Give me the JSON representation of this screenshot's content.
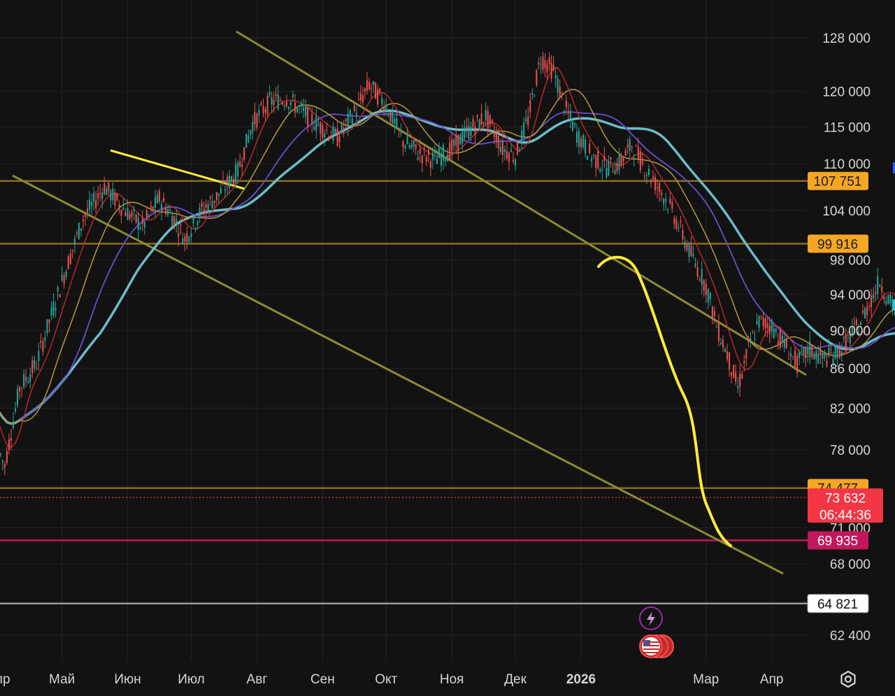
{
  "chart_data": {
    "type": "candlestick",
    "y_ticks": [
      {
        "value": 128000,
        "label": "128 000"
      },
      {
        "value": 120000,
        "label": "120 000"
      },
      {
        "value": 115000,
        "label": "115 000"
      },
      {
        "value": 110000,
        "label": "110 000"
      },
      {
        "value": 104000,
        "label": "104 000"
      },
      {
        "value": 98000,
        "label": "98 000"
      },
      {
        "value": 94000,
        "label": "94 000"
      },
      {
        "value": 90000,
        "label": "90 000"
      },
      {
        "value": 86000,
        "label": "86 000"
      },
      {
        "value": 82000,
        "label": "82 000"
      },
      {
        "value": 78000,
        "label": "78 000"
      },
      {
        "value": 71000,
        "label": "71 000"
      },
      {
        "value": 68000,
        "label": "68 000"
      },
      {
        "value": 62400,
        "label": "62 400"
      }
    ],
    "x_ticks": [
      {
        "date": "2025-04-01",
        "label": "Апр",
        "bold": false
      },
      {
        "date": "2025-05-01",
        "label": "Май",
        "bold": false
      },
      {
        "date": "2025-06-01",
        "label": "Июн",
        "bold": false
      },
      {
        "date": "2025-07-01",
        "label": "Июл",
        "bold": false
      },
      {
        "date": "2025-08-01",
        "label": "Авг",
        "bold": false
      },
      {
        "date": "2025-09-01",
        "label": "Сен",
        "bold": false
      },
      {
        "date": "2025-10-01",
        "label": "Окт",
        "bold": false
      },
      {
        "date": "2025-11-01",
        "label": "Ноя",
        "bold": false
      },
      {
        "date": "2025-12-01",
        "label": "Дек",
        "bold": false
      },
      {
        "date": "2026-01-01",
        "label": "2026",
        "bold": true
      },
      {
        "date": "2026-03-01",
        "label": "Мар",
        "bold": false
      },
      {
        "date": "2026-04-01",
        "label": "Апр",
        "bold": false
      }
    ],
    "price_levels": [
      {
        "value": 107751,
        "label": "107 751",
        "color": "#8a6d1e",
        "badge_bg": "#f5a623",
        "badge_fg": "#1a1a1a"
      },
      {
        "value": 99916,
        "label": "99 916",
        "color": "#8a6d1e",
        "badge_bg": "#f5a623",
        "badge_fg": "#1a1a1a"
      },
      {
        "value": 74477,
        "label": "74 477",
        "color": "#8a6d1e",
        "badge_bg": "#f5a623",
        "badge_fg": "#1a1a1a"
      },
      {
        "value": 69935,
        "label": "69 935",
        "color": "#c2185b",
        "badge_bg": "#c2185b",
        "badge_fg": "#ffffff"
      },
      {
        "value": 64821,
        "label": "64 821",
        "color": "#9a9a9a",
        "badge_bg": "#ffffff",
        "badge_fg": "#111111"
      }
    ],
    "current_price": {
      "value": 73632,
      "label": "73 632",
      "countdown": "06:44:36",
      "color": "#f23645"
    },
    "colors": {
      "up": "#26a69a",
      "down": "#ef5350",
      "background": "#121212",
      "grid": "#232323",
      "trendline": "#8c8a35",
      "ma_red": "#c62828",
      "ma_yellow": "#b49b3c",
      "ma_purple": "#6a4fcf",
      "ma_teal": "#6bbcc8",
      "annotation": "#ffeb3b"
    },
    "series_overlays": [
      "ma_red",
      "ma_yellow",
      "ma_purple",
      "ma_teal"
    ],
    "y_scale": "log",
    "grid": true
  },
  "icons": {
    "event_icon": "lightning-icon",
    "flag_icon": "us-flag-icon",
    "settings_icon": "gear-icon"
  }
}
